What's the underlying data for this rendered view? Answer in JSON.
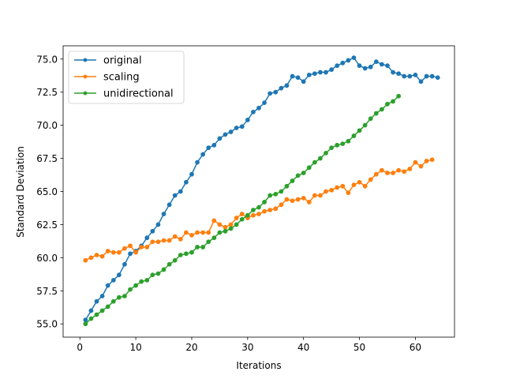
{
  "chart_data": {
    "type": "line",
    "title": "",
    "xlabel": "Iterations",
    "ylabel": "Standard Deviation",
    "xlim": [
      -3,
      67
    ],
    "ylim": [
      54.0,
      76.0
    ],
    "xticks": [
      0,
      10,
      20,
      30,
      40,
      50,
      60
    ],
    "yticks": [
      55.0,
      57.5,
      60.0,
      62.5,
      65.0,
      67.5,
      70.0,
      72.5,
      75.0
    ],
    "xtick_labels": [
      "0",
      "10",
      "20",
      "30",
      "40",
      "50",
      "60"
    ],
    "ytick_labels": [
      "55.0",
      "57.5",
      "60.0",
      "62.5",
      "65.0",
      "67.5",
      "70.0",
      "72.5",
      "75.0"
    ],
    "grid": false,
    "legend_position": "top-left",
    "series": [
      {
        "name": "original",
        "color": "#1f77b4",
        "x": [
          1,
          2,
          3,
          4,
          5,
          6,
          7,
          8,
          9,
          10,
          11,
          12,
          13,
          14,
          15,
          16,
          17,
          18,
          19,
          20,
          21,
          22,
          23,
          24,
          25,
          26,
          27,
          28,
          29,
          30,
          31,
          32,
          33,
          34,
          35,
          36,
          37,
          38,
          39,
          40,
          41,
          42,
          43,
          44,
          45,
          46,
          47,
          48,
          49,
          50,
          51,
          52,
          53,
          54,
          55,
          56,
          57,
          58,
          59,
          60,
          61,
          62,
          63,
          64
        ],
        "y": [
          55.3,
          56.0,
          56.7,
          57.1,
          57.9,
          58.3,
          58.7,
          59.5,
          60.3,
          60.5,
          60.9,
          61.5,
          62.0,
          62.5,
          63.3,
          64.0,
          64.7,
          65.0,
          65.7,
          66.3,
          67.2,
          67.8,
          68.3,
          68.5,
          69.0,
          69.3,
          69.5,
          69.8,
          69.9,
          70.4,
          71.0,
          71.3,
          71.7,
          72.4,
          72.5,
          72.8,
          73.0,
          73.7,
          73.6,
          73.3,
          73.8,
          73.9,
          74.0,
          74.0,
          74.2,
          74.5,
          74.7,
          74.9,
          75.1,
          74.5,
          74.3,
          74.4,
          74.8,
          74.6,
          74.5,
          74.0,
          73.9,
          73.7,
          73.7,
          73.8,
          73.3,
          73.7,
          73.7,
          73.6
        ]
      },
      {
        "name": "scaling",
        "color": "#ff7f0e",
        "x": [
          1,
          2,
          3,
          4,
          5,
          6,
          7,
          8,
          9,
          10,
          11,
          12,
          13,
          14,
          15,
          16,
          17,
          18,
          19,
          20,
          21,
          22,
          23,
          24,
          25,
          26,
          27,
          28,
          29,
          30,
          31,
          32,
          33,
          34,
          35,
          36,
          37,
          38,
          39,
          40,
          41,
          42,
          43,
          44,
          45,
          46,
          47,
          48,
          49,
          50,
          51,
          52,
          53,
          54,
          55,
          56,
          57,
          58,
          59,
          60,
          61,
          62,
          63
        ],
        "y": [
          59.8,
          60.0,
          60.2,
          60.1,
          60.5,
          60.4,
          60.4,
          60.7,
          60.9,
          60.4,
          60.8,
          60.8,
          61.2,
          61.2,
          61.3,
          61.3,
          61.6,
          61.4,
          61.9,
          61.7,
          61.9,
          61.9,
          61.9,
          62.8,
          62.5,
          62.3,
          62.5,
          63.0,
          63.3,
          63.0,
          63.2,
          63.3,
          63.5,
          63.6,
          63.7,
          64.0,
          64.4,
          64.3,
          64.4,
          64.5,
          64.2,
          64.7,
          64.7,
          65.0,
          65.1,
          65.3,
          65.4,
          64.9,
          65.5,
          65.7,
          65.4,
          65.9,
          66.3,
          66.6,
          66.4,
          66.4,
          66.6,
          66.5,
          66.7,
          67.2,
          66.9,
          67.3,
          67.4
        ]
      },
      {
        "name": "unidirectional",
        "color": "#2ca02c",
        "x": [
          1,
          2,
          3,
          4,
          5,
          6,
          7,
          8,
          9,
          10,
          11,
          12,
          13,
          14,
          15,
          16,
          17,
          18,
          19,
          20,
          21,
          22,
          23,
          24,
          25,
          26,
          27,
          28,
          29,
          30,
          31,
          32,
          33,
          34,
          35,
          36,
          37,
          38,
          39,
          40,
          41,
          42,
          43,
          44,
          45,
          46,
          47,
          48,
          49,
          50,
          51,
          52,
          53,
          54,
          55,
          56,
          57
        ],
        "y": [
          55.0,
          55.4,
          55.7,
          56.0,
          56.3,
          56.7,
          57.0,
          57.1,
          57.6,
          57.9,
          58.2,
          58.3,
          58.7,
          58.8,
          59.1,
          59.5,
          59.8,
          60.2,
          60.3,
          60.4,
          60.8,
          60.8,
          61.2,
          61.5,
          61.9,
          62.0,
          62.2,
          62.5,
          62.9,
          63.2,
          63.6,
          63.8,
          64.2,
          64.7,
          64.8,
          65.0,
          65.4,
          65.8,
          66.2,
          66.4,
          66.8,
          67.2,
          67.5,
          67.9,
          68.3,
          68.5,
          68.6,
          68.8,
          69.2,
          69.6,
          70.0,
          70.5,
          70.9,
          71.2,
          71.6,
          71.8,
          72.2
        ]
      }
    ]
  }
}
